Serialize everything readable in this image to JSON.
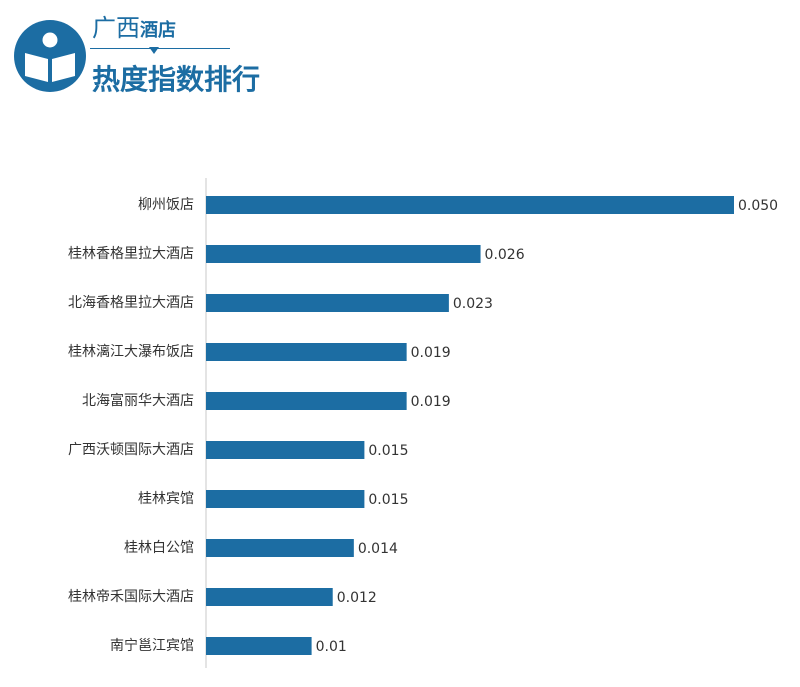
{
  "header": {
    "title_region": "广西",
    "title_suffix": "酒店",
    "title_main": "热度指数排行",
    "logo_icon": "open-book-icon",
    "accent_color": "#1c6da3"
  },
  "chart_data": {
    "type": "bar",
    "orientation": "horizontal",
    "categories": [
      "柳州饭店",
      "桂林香格里拉大酒店",
      "北海香格里拉大酒店",
      "桂林漓江大瀑布饭店",
      "北海富丽华大酒店",
      "广西沃顿国际大酒店",
      "桂林宾馆",
      "桂林白公馆",
      "桂林帝禾国际大酒店",
      "南宁邕江宾馆"
    ],
    "values": [
      0.05,
      0.026,
      0.023,
      0.019,
      0.019,
      0.015,
      0.015,
      0.014,
      0.012,
      0.01
    ],
    "value_labels": [
      "0.050",
      "0.026",
      "0.023",
      "0.019",
      "0.019",
      "0.015",
      "0.015",
      "0.014",
      "0.012",
      "0.01"
    ],
    "xlim": [
      0,
      0.05
    ],
    "bar_color": "#1c6da3",
    "grid": false,
    "legend": "none"
  }
}
